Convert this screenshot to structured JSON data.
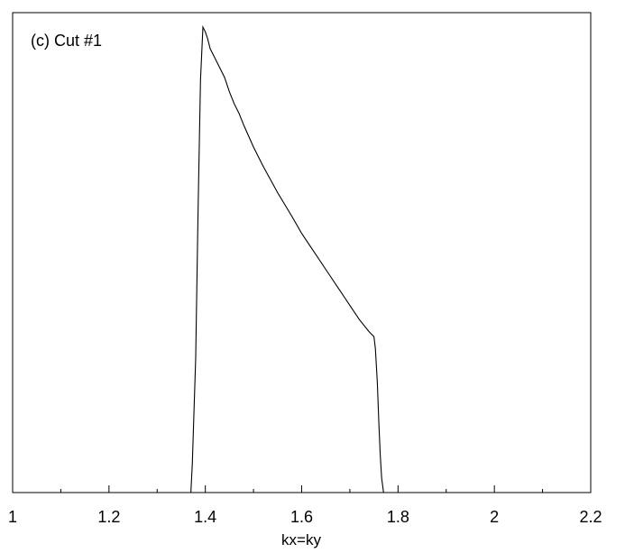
{
  "chart_data": {
    "type": "line",
    "annotation": "(c) Cut #1",
    "xlabel": "kx=ky",
    "ylabel": "",
    "xlim": [
      1.0,
      2.2
    ],
    "ylim": [
      0,
      1.0
    ],
    "x_ticks": [
      1,
      1.2,
      1.4,
      1.6,
      1.8,
      2,
      2.2
    ],
    "x_tick_labels": [
      "1",
      "1.2",
      "1.4",
      "1.6",
      "1.8",
      "2",
      "2.2"
    ],
    "x_minor_ticks": [
      1.1,
      1.3,
      1.5,
      1.7,
      1.9,
      2.1
    ],
    "y_ticks": [],
    "grid": false,
    "legend": "none",
    "series": [
      {
        "color": "#000000",
        "x": [
          1.0,
          1.37,
          1.373,
          1.38,
          1.385,
          1.39,
          1.395,
          1.4,
          1.405,
          1.41,
          1.42,
          1.43,
          1.44,
          1.45,
          1.46,
          1.47,
          1.48,
          1.5,
          1.52,
          1.55,
          1.58,
          1.6,
          1.62,
          1.65,
          1.68,
          1.7,
          1.72,
          1.74,
          1.75,
          1.753,
          1.757,
          1.76,
          1.763,
          1.766,
          1.77,
          2.2
        ],
        "y": [
          0.0,
          0.0,
          0.06,
          0.28,
          0.59,
          0.86,
          0.97,
          0.96,
          0.945,
          0.925,
          0.905,
          0.885,
          0.865,
          0.835,
          0.81,
          0.79,
          0.765,
          0.72,
          0.68,
          0.625,
          0.575,
          0.54,
          0.51,
          0.465,
          0.42,
          0.39,
          0.36,
          0.335,
          0.325,
          0.3,
          0.23,
          0.15,
          0.08,
          0.03,
          0.0,
          0.0
        ]
      }
    ]
  }
}
